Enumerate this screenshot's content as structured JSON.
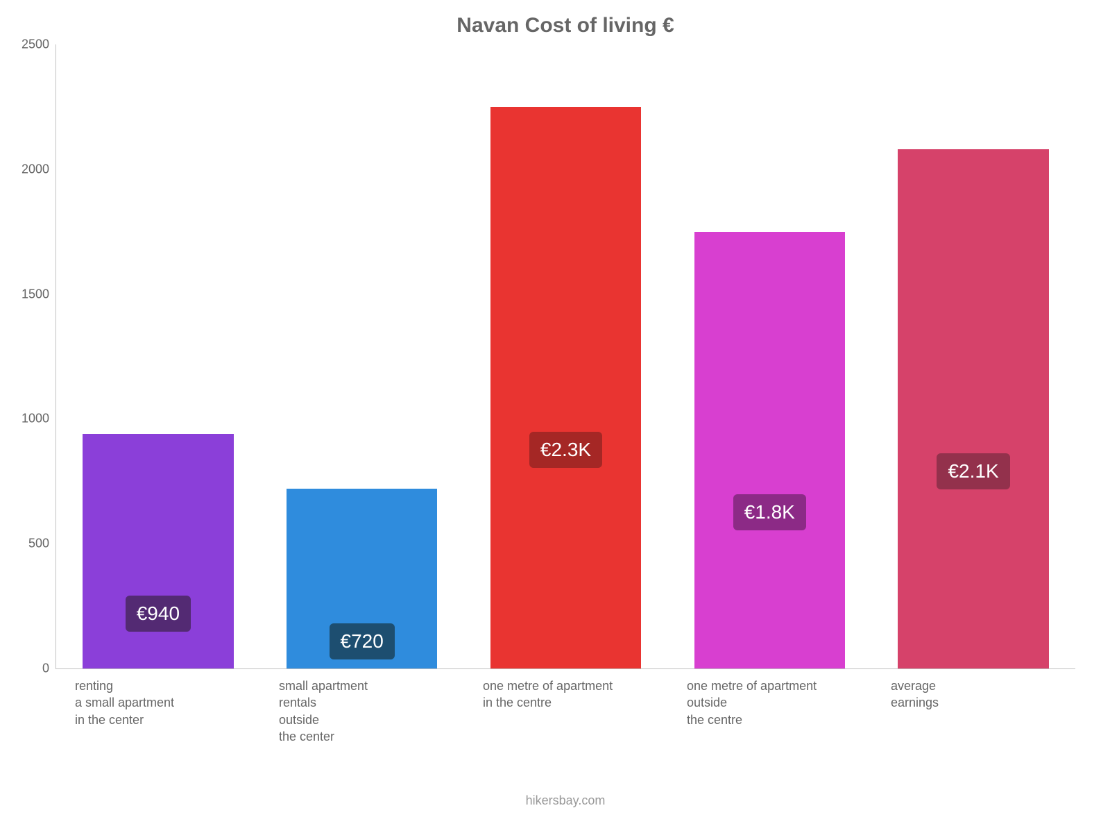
{
  "chart": {
    "type": "bar",
    "title": "Navan Cost of living €",
    "title_fontsize": 30,
    "title_color": "#666666",
    "background_color": "#ffffff",
    "axis_line_color": "#c0c0c0",
    "tick_label_color": "#666666",
    "tick_label_fontsize": 18,
    "xlabel_fontsize": 18,
    "ylim": [
      0,
      2500
    ],
    "ytick_step": 500,
    "yticks": [
      {
        "value": 0,
        "label": "0"
      },
      {
        "value": 500,
        "label": "500"
      },
      {
        "value": 1000,
        "label": "1000"
      },
      {
        "value": 1500,
        "label": "1500"
      },
      {
        "value": 2000,
        "label": "2000"
      },
      {
        "value": 2500,
        "label": "2500"
      }
    ],
    "bar_width": 0.74,
    "series": [
      {
        "category": "renting\na small apartment\nin the center",
        "value": 940,
        "value_label": "€940",
        "bar_color": "#8b3fd9",
        "label_bg_color": "#532a73"
      },
      {
        "category": "small apartment\nrentals\noutside\nthe center",
        "value": 720,
        "value_label": "€720",
        "bar_color": "#2f8cdd",
        "label_bg_color": "#1d4e70"
      },
      {
        "category": "one metre of apartment\nin the centre",
        "value": 2250,
        "value_label": "€2.3K",
        "bar_color": "#e93431",
        "label_bg_color": "#a52725"
      },
      {
        "category": "one metre of apartment\noutside\nthe centre",
        "value": 1750,
        "value_label": "€1.8K",
        "bar_color": "#d83fd0",
        "label_bg_color": "#8c2a86"
      },
      {
        "category": "average\nearnings",
        "value": 2080,
        "value_label": "€2.1K",
        "bar_color": "#d6426a",
        "label_bg_color": "#93314c"
      }
    ],
    "credit": "hikersbay.com",
    "credit_color": "#999999",
    "credit_fontsize": 18
  }
}
